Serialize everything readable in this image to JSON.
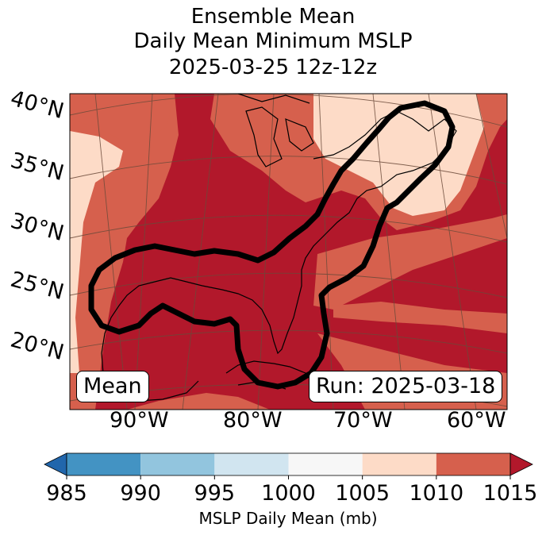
{
  "title": {
    "line1": "Ensemble Mean",
    "line2": "Daily Mean Minimum MSLP",
    "line3": "2025-03-25 12z-12z"
  },
  "map": {
    "latitude_labels": [
      "40°N",
      "35°N",
      "30°N",
      "25°N",
      "20°N"
    ],
    "longitude_labels": [
      "90°W",
      "80°W",
      "70°W",
      "60°W"
    ],
    "left_box_label": "Mean",
    "right_box_label": "Run: 2025-03-18",
    "contour_color": "#000000",
    "coastline_color": "#000000",
    "gridline_color": "#6b4a3a"
  },
  "colorbar": {
    "label": "MSLP Daily Mean (mb)",
    "ticks": [
      "985",
      "990",
      "995",
      "1000",
      "1005",
      "1010",
      "1015"
    ],
    "bins": [
      {
        "range": "< 985",
        "color": "#2166ac"
      },
      {
        "range": "985-990",
        "color": "#4393c3"
      },
      {
        "range": "990-995",
        "color": "#92c5de"
      },
      {
        "range": "995-1000",
        "color": "#d1e5f0"
      },
      {
        "range": "1000-1005",
        "color": "#f7f7f7"
      },
      {
        "range": "1005-1010",
        "color": "#fddbc7"
      },
      {
        "range": "1010-1015",
        "color": "#d6604d"
      },
      {
        "range": "> 1015",
        "color": "#b2182b"
      }
    ]
  }
}
